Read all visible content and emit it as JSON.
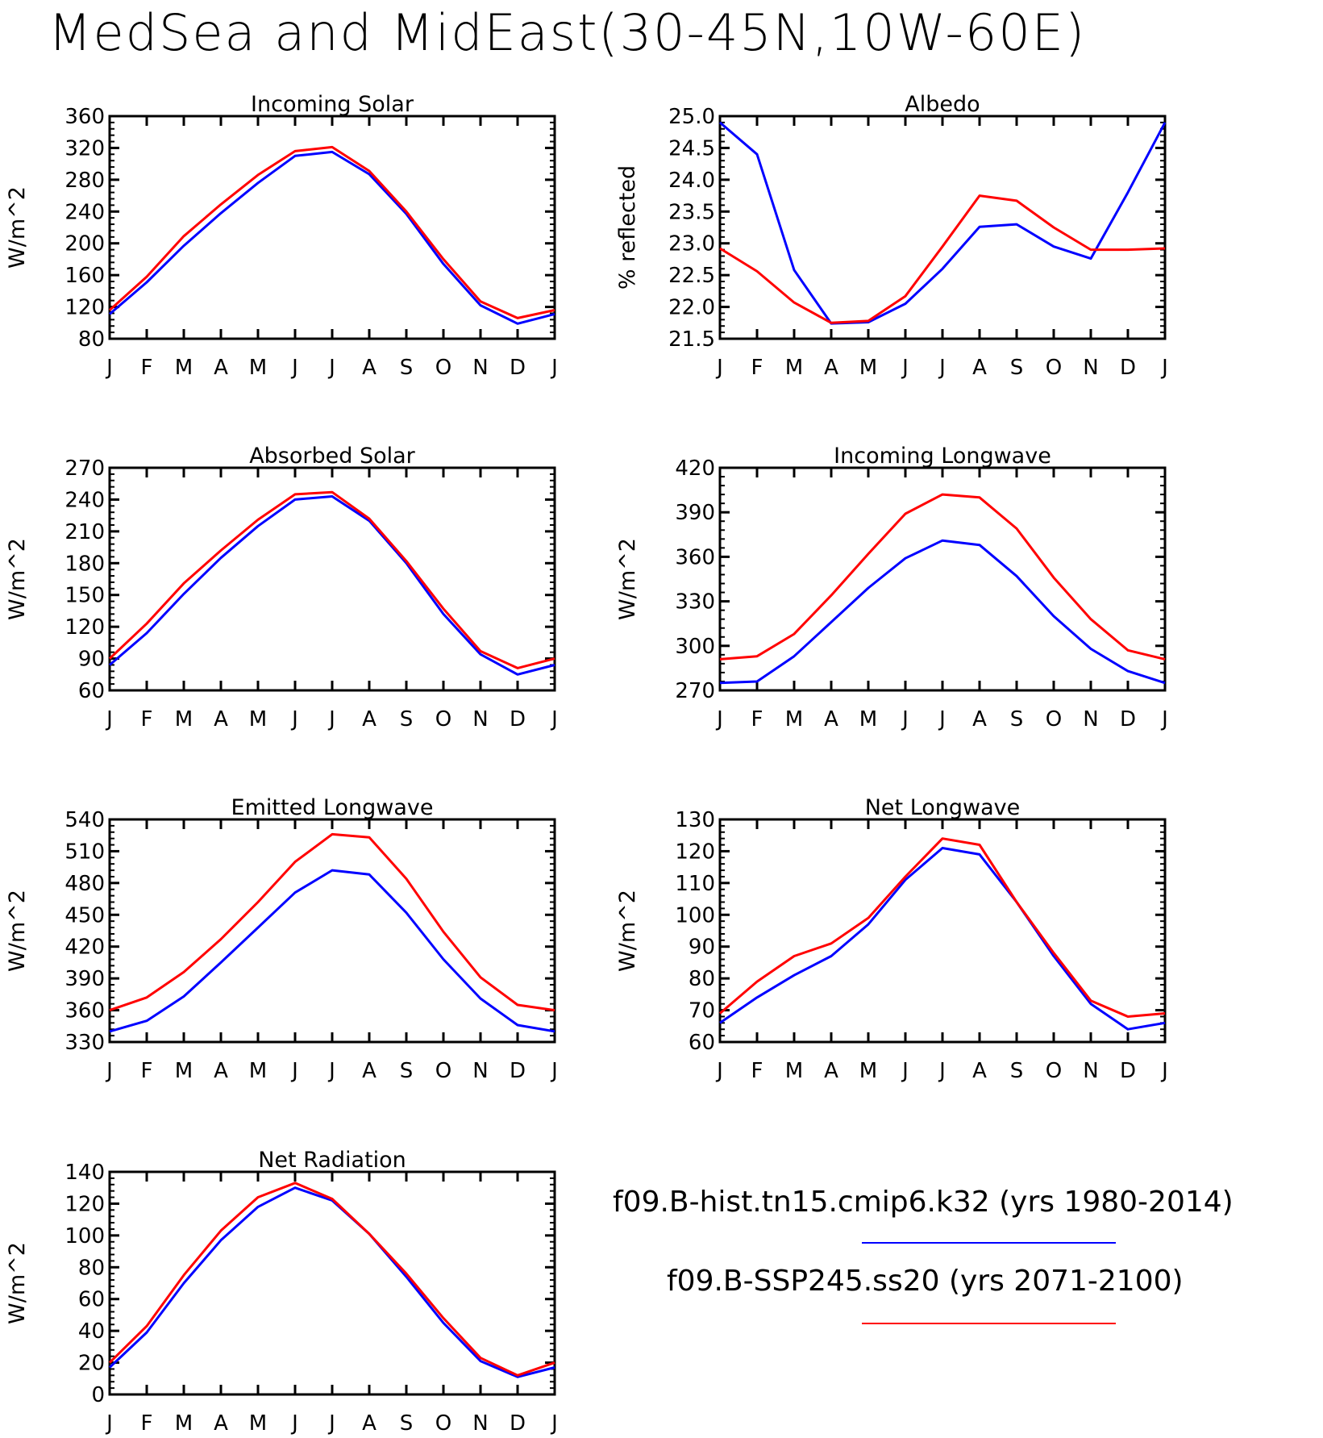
{
  "title": "MedSea and MidEast(30-45N,10W-60E)",
  "colors": {
    "hist": "#0000ff",
    "ssp": "#ff0000",
    "axis": "#000000"
  },
  "legend": [
    {
      "label": "f09.B-hist.tn15.cmip6.k32 (yrs 1980-2014)",
      "color": "#0000ff"
    },
    {
      "label": "f09.B-SSP245.ss20 (yrs 2071-2100)",
      "color": "#ff0000"
    }
  ],
  "chart_data": [
    {
      "type": "line",
      "title": "Incoming Solar",
      "ylabel": "W/m^2",
      "categories": [
        "J",
        "F",
        "M",
        "A",
        "M",
        "J",
        "J",
        "A",
        "S",
        "O",
        "N",
        "D",
        "J"
      ],
      "ylim": [
        80,
        360
      ],
      "yticks": [
        80,
        120,
        160,
        200,
        240,
        280,
        320,
        360
      ],
      "series": [
        {
          "name": "f09.B-hist.tn15.cmip6.k32 (yrs 1980-2014)",
          "values": [
            111,
            151,
            197,
            238,
            276,
            310,
            315,
            287,
            237,
            174,
            122,
            99,
            111
          ]
        },
        {
          "name": "f09.B-SSP245.ss20 (yrs 2071-2100)",
          "values": [
            116,
            158,
            209,
            249,
            286,
            316,
            321,
            291,
            240,
            180,
            127,
            106,
            116
          ]
        }
      ]
    },
    {
      "type": "line",
      "title": "Albedo",
      "ylabel": "% reflected",
      "categories": [
        "J",
        "F",
        "M",
        "A",
        "M",
        "J",
        "J",
        "A",
        "S",
        "O",
        "N",
        "D",
        "J"
      ],
      "ylim": [
        21.5,
        25.0
      ],
      "yticks": [
        "21.5",
        "22.0",
        "22.5",
        "23.0",
        "23.5",
        "24.0",
        "24.5",
        "25.0"
      ],
      "series": [
        {
          "name": "f09.B-hist.tn15.cmip6.k32 (yrs 1980-2014)",
          "values": [
            24.9,
            24.4,
            22.58,
            21.74,
            21.76,
            22.05,
            22.6,
            23.26,
            23.3,
            22.95,
            22.76,
            23.8,
            24.9
          ]
        },
        {
          "name": "f09.B-SSP245.ss20 (yrs 2071-2100)",
          "values": [
            22.92,
            22.56,
            22.07,
            21.75,
            21.78,
            22.17,
            22.95,
            23.75,
            23.67,
            23.25,
            22.9,
            22.9,
            22.92
          ]
        }
      ]
    },
    {
      "type": "line",
      "title": "Absorbed Solar",
      "ylabel": "W/m^2",
      "categories": [
        "J",
        "F",
        "M",
        "A",
        "M",
        "J",
        "J",
        "A",
        "S",
        "O",
        "N",
        "D",
        "J"
      ],
      "ylim": [
        60,
        270
      ],
      "yticks": [
        60,
        90,
        120,
        150,
        180,
        210,
        240,
        270
      ],
      "series": [
        {
          "name": "f09.B-hist.tn15.cmip6.k32 (yrs 1980-2014)",
          "values": [
            84,
            114,
            151,
            185,
            215,
            240,
            243,
            220,
            180,
            132,
            94,
            75,
            84
          ]
        },
        {
          "name": "f09.B-SSP245.ss20 (yrs 2071-2100)",
          "values": [
            90,
            123,
            161,
            192,
            221,
            245,
            247,
            222,
            182,
            137,
            97,
            81,
            90
          ]
        }
      ]
    },
    {
      "type": "line",
      "title": "Incoming Longwave",
      "ylabel": "W/m^2",
      "categories": [
        "J",
        "F",
        "M",
        "A",
        "M",
        "J",
        "J",
        "A",
        "S",
        "O",
        "N",
        "D",
        "J"
      ],
      "ylim": [
        270,
        420
      ],
      "yticks": [
        270,
        300,
        330,
        360,
        390,
        420
      ],
      "series": [
        {
          "name": "f09.B-hist.tn15.cmip6.k32 (yrs 1980-2014)",
          "values": [
            275,
            276,
            293,
            316,
            339,
            359,
            371,
            368,
            347,
            320,
            298,
            283,
            275
          ]
        },
        {
          "name": "f09.B-SSP245.ss20 (yrs 2071-2100)",
          "values": [
            291,
            293,
            308,
            334,
            362,
            389,
            402,
            400,
            379,
            346,
            318,
            297,
            291
          ]
        }
      ]
    },
    {
      "type": "line",
      "title": "Emitted Longwave",
      "ylabel": "W/m^2",
      "categories": [
        "J",
        "F",
        "M",
        "A",
        "M",
        "J",
        "J",
        "A",
        "S",
        "O",
        "N",
        "D",
        "J"
      ],
      "ylim": [
        330,
        540
      ],
      "yticks": [
        330,
        360,
        390,
        420,
        450,
        480,
        510,
        540
      ],
      "series": [
        {
          "name": "f09.B-hist.tn15.cmip6.k32 (yrs 1980-2014)",
          "values": [
            340,
            350,
            373,
            405,
            438,
            471,
            492,
            488,
            452,
            408,
            371,
            346,
            340
          ]
        },
        {
          "name": "f09.B-SSP245.ss20 (yrs 2071-2100)",
          "values": [
            360,
            372,
            396,
            427,
            462,
            500,
            526,
            523,
            484,
            434,
            391,
            365,
            360
          ]
        }
      ]
    },
    {
      "type": "line",
      "title": "Net Longwave",
      "ylabel": "W/m^2",
      "categories": [
        "J",
        "F",
        "M",
        "A",
        "M",
        "J",
        "J",
        "A",
        "S",
        "O",
        "N",
        "D",
        "J"
      ],
      "ylim": [
        60,
        130
      ],
      "yticks": [
        60,
        70,
        80,
        90,
        100,
        110,
        120,
        130
      ],
      "series": [
        {
          "name": "f09.B-hist.tn15.cmip6.k32 (yrs 1980-2014)",
          "values": [
            66,
            74,
            81,
            87,
            97,
            111,
            121,
            119,
            104,
            87,
            72,
            64,
            66
          ]
        },
        {
          "name": "f09.B-SSP245.ss20 (yrs 2071-2100)",
          "values": [
            69,
            79,
            87,
            91,
            99,
            112,
            124,
            122,
            104,
            88,
            73,
            68,
            69
          ]
        }
      ]
    },
    {
      "type": "line",
      "title": "Net Radiation",
      "ylabel": "W/m^2",
      "categories": [
        "J",
        "F",
        "M",
        "A",
        "M",
        "J",
        "J",
        "A",
        "S",
        "O",
        "N",
        "D",
        "J"
      ],
      "ylim": [
        0,
        140
      ],
      "yticks": [
        0,
        20,
        40,
        60,
        80,
        100,
        120,
        140
      ],
      "series": [
        {
          "name": "f09.B-hist.tn15.cmip6.k32 (yrs 1980-2014)",
          "values": [
            17,
            39,
            70,
            97,
            118,
            130,
            122,
            101,
            74,
            45,
            21,
            11,
            17
          ]
        },
        {
          "name": "f09.B-SSP245.ss20 (yrs 2071-2100)",
          "values": [
            20,
            43,
            75,
            103,
            124,
            133,
            123,
            101,
            76,
            48,
            23,
            12,
            20
          ]
        }
      ]
    }
  ]
}
